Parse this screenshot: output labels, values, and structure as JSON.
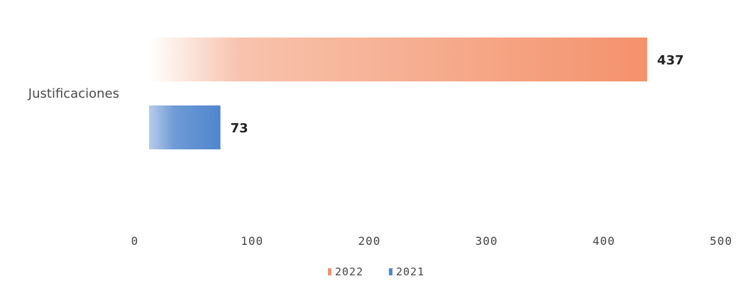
{
  "chart_data": {
    "type": "bar",
    "orientation": "horizontal",
    "categories": [
      "Justificaciones"
    ],
    "series": [
      {
        "name": "2022",
        "values": [
          437
        ],
        "color": "#f4926c"
      },
      {
        "name": "2021",
        "values": [
          73
        ],
        "color": "#4f86cc"
      }
    ],
    "xlim": [
      0,
      500
    ],
    "xticks": [
      "0",
      "100",
      "200",
      "300",
      "400",
      "500"
    ],
    "grid": false,
    "legend_position": "bottom"
  }
}
